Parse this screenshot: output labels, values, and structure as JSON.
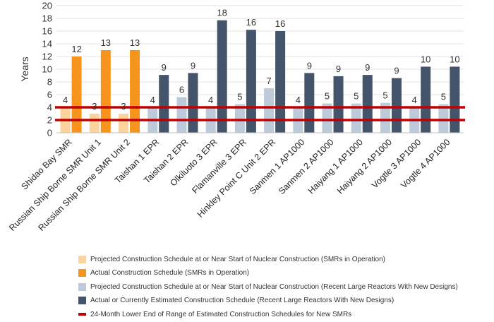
{
  "chart_data": {
    "type": "bar",
    "ylabel": "Years",
    "ylim": [
      0,
      20
    ],
    "yticks": [
      "0",
      "2",
      "4",
      "6",
      "8",
      "10",
      "12",
      "14",
      "16",
      "18",
      "20"
    ],
    "grid": true,
    "legend_position": "bottom",
    "reference_line": {
      "name": "24-Month Lower End of Range of Estimated Construction Schedules for New SMRs",
      "range": [
        2,
        4
      ],
      "color": "#c00000"
    },
    "series": [
      {
        "name": "Projected Construction Schedule at or Near Start of Nuclear Construction (SMRs in Operation)",
        "color": "#fdd39d"
      },
      {
        "name": "Actual Construction Schedule (SMRs in Operation)",
        "color": "#f7941d"
      },
      {
        "name": "Projected Construction Schedule at or Near Start of Nuclear Construction (Recent Large Reactors With New Designs)",
        "color": "#bdcad9"
      },
      {
        "name": "Actual or Currently Estimated Construction Schedule (Recent Large Reactors With New Designs)",
        "color": "#44546a"
      }
    ],
    "categories": [
      {
        "name": "Shidao Bay SMR",
        "projected": 4,
        "projected_label": "4",
        "actual": 12,
        "actual_label": "12",
        "group": "smr"
      },
      {
        "name": "Russian Ship Borne SMR Unit 1",
        "projected": 3,
        "projected_label": "3",
        "actual": 13,
        "actual_label": "13",
        "group": "smr"
      },
      {
        "name": "Russian Ship Borne SMR Unit 2",
        "projected": 3,
        "projected_label": "3",
        "actual": 13,
        "actual_label": "13",
        "group": "smr"
      },
      {
        "name": "Taishan 1 EPR",
        "projected": 4,
        "projected_label": "4",
        "actual": 9.1,
        "actual_label": "9",
        "group": "large"
      },
      {
        "name": "Taishan 2 EPR",
        "projected": 5.6,
        "projected_label": "6",
        "actual": 9.4,
        "actual_label": "9",
        "group": "large"
      },
      {
        "name": "Olkiluoto 3 EPR",
        "projected": 4,
        "projected_label": "4",
        "actual": 17.7,
        "actual_label": "18",
        "group": "large"
      },
      {
        "name": "Flamanville 3 EPR",
        "projected": 4.5,
        "projected_label": "5",
        "actual": 16.2,
        "actual_label": "16",
        "group": "large"
      },
      {
        "name": "Hinkley Point C Unit 2 EPR",
        "projected": 7,
        "projected_label": "7",
        "actual": 16,
        "actual_label": "16",
        "group": "large"
      },
      {
        "name": "Sanmen 1 AP1000",
        "projected": 4,
        "projected_label": "4",
        "actual": 9.4,
        "actual_label": "9",
        "group": "large"
      },
      {
        "name": "Sanmen 2 AP1000",
        "projected": 4.6,
        "projected_label": "5",
        "actual": 8.9,
        "actual_label": "9",
        "group": "large"
      },
      {
        "name": "Haiyang 1 AP1000",
        "projected": 4.6,
        "projected_label": "5",
        "actual": 9.1,
        "actual_label": "9",
        "group": "large"
      },
      {
        "name": "Haiyang 2 AP1000",
        "projected": 4.7,
        "projected_label": "5",
        "actual": 8.6,
        "actual_label": "9",
        "group": "large"
      },
      {
        "name": "Vogtle 3 AP1000",
        "projected": 4,
        "projected_label": "4",
        "actual": 10.4,
        "actual_label": "10",
        "group": "large"
      },
      {
        "name": "Vogtle 4 AP1000",
        "projected": 4.5,
        "projected_label": "5",
        "actual": 10.4,
        "actual_label": "10",
        "group": "large"
      }
    ]
  }
}
